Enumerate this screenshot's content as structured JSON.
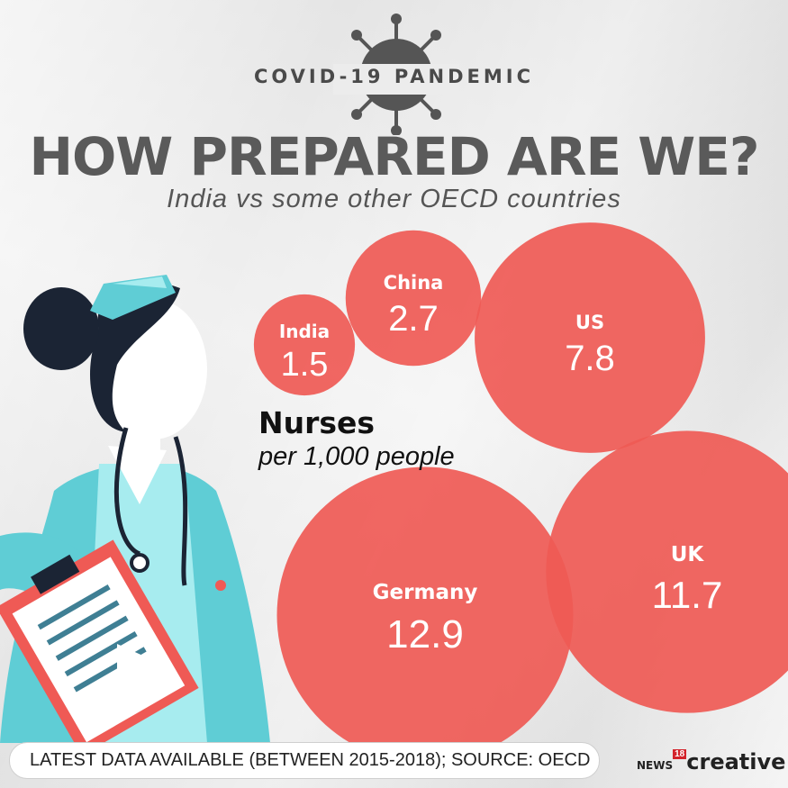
{
  "header": {
    "kicker": "COVID-19 PANDEMIC",
    "title": "HOW PREPARED ARE WE?",
    "subtitle": "India vs some other OECD countries"
  },
  "metric": {
    "line1": "Nurses",
    "line2": "per 1,000 people"
  },
  "footer": {
    "note": "LATEST DATA AVAILABLE (BETWEEN 2015-2018); SOURCE: OECD"
  },
  "logo": {
    "prefix": "NEWS",
    "number": "18",
    "word": "creative"
  },
  "colors": {
    "bubble": "#ef5a55",
    "bubble_text": "#ffffff",
    "title": "#5a5a5a",
    "scrub": "#5fcdd5"
  },
  "chart_data": {
    "type": "bubble",
    "categories": [
      "India",
      "China",
      "US",
      "UK",
      "Germany"
    ],
    "values": [
      1.5,
      2.7,
      7.8,
      11.7,
      12.9
    ],
    "value_labels": [
      "1.5",
      "2.7",
      "7.8",
      "11.7",
      "12.9"
    ],
    "title": "HOW PREPARED ARE WE?",
    "unit": "Nurses per 1,000 people"
  }
}
